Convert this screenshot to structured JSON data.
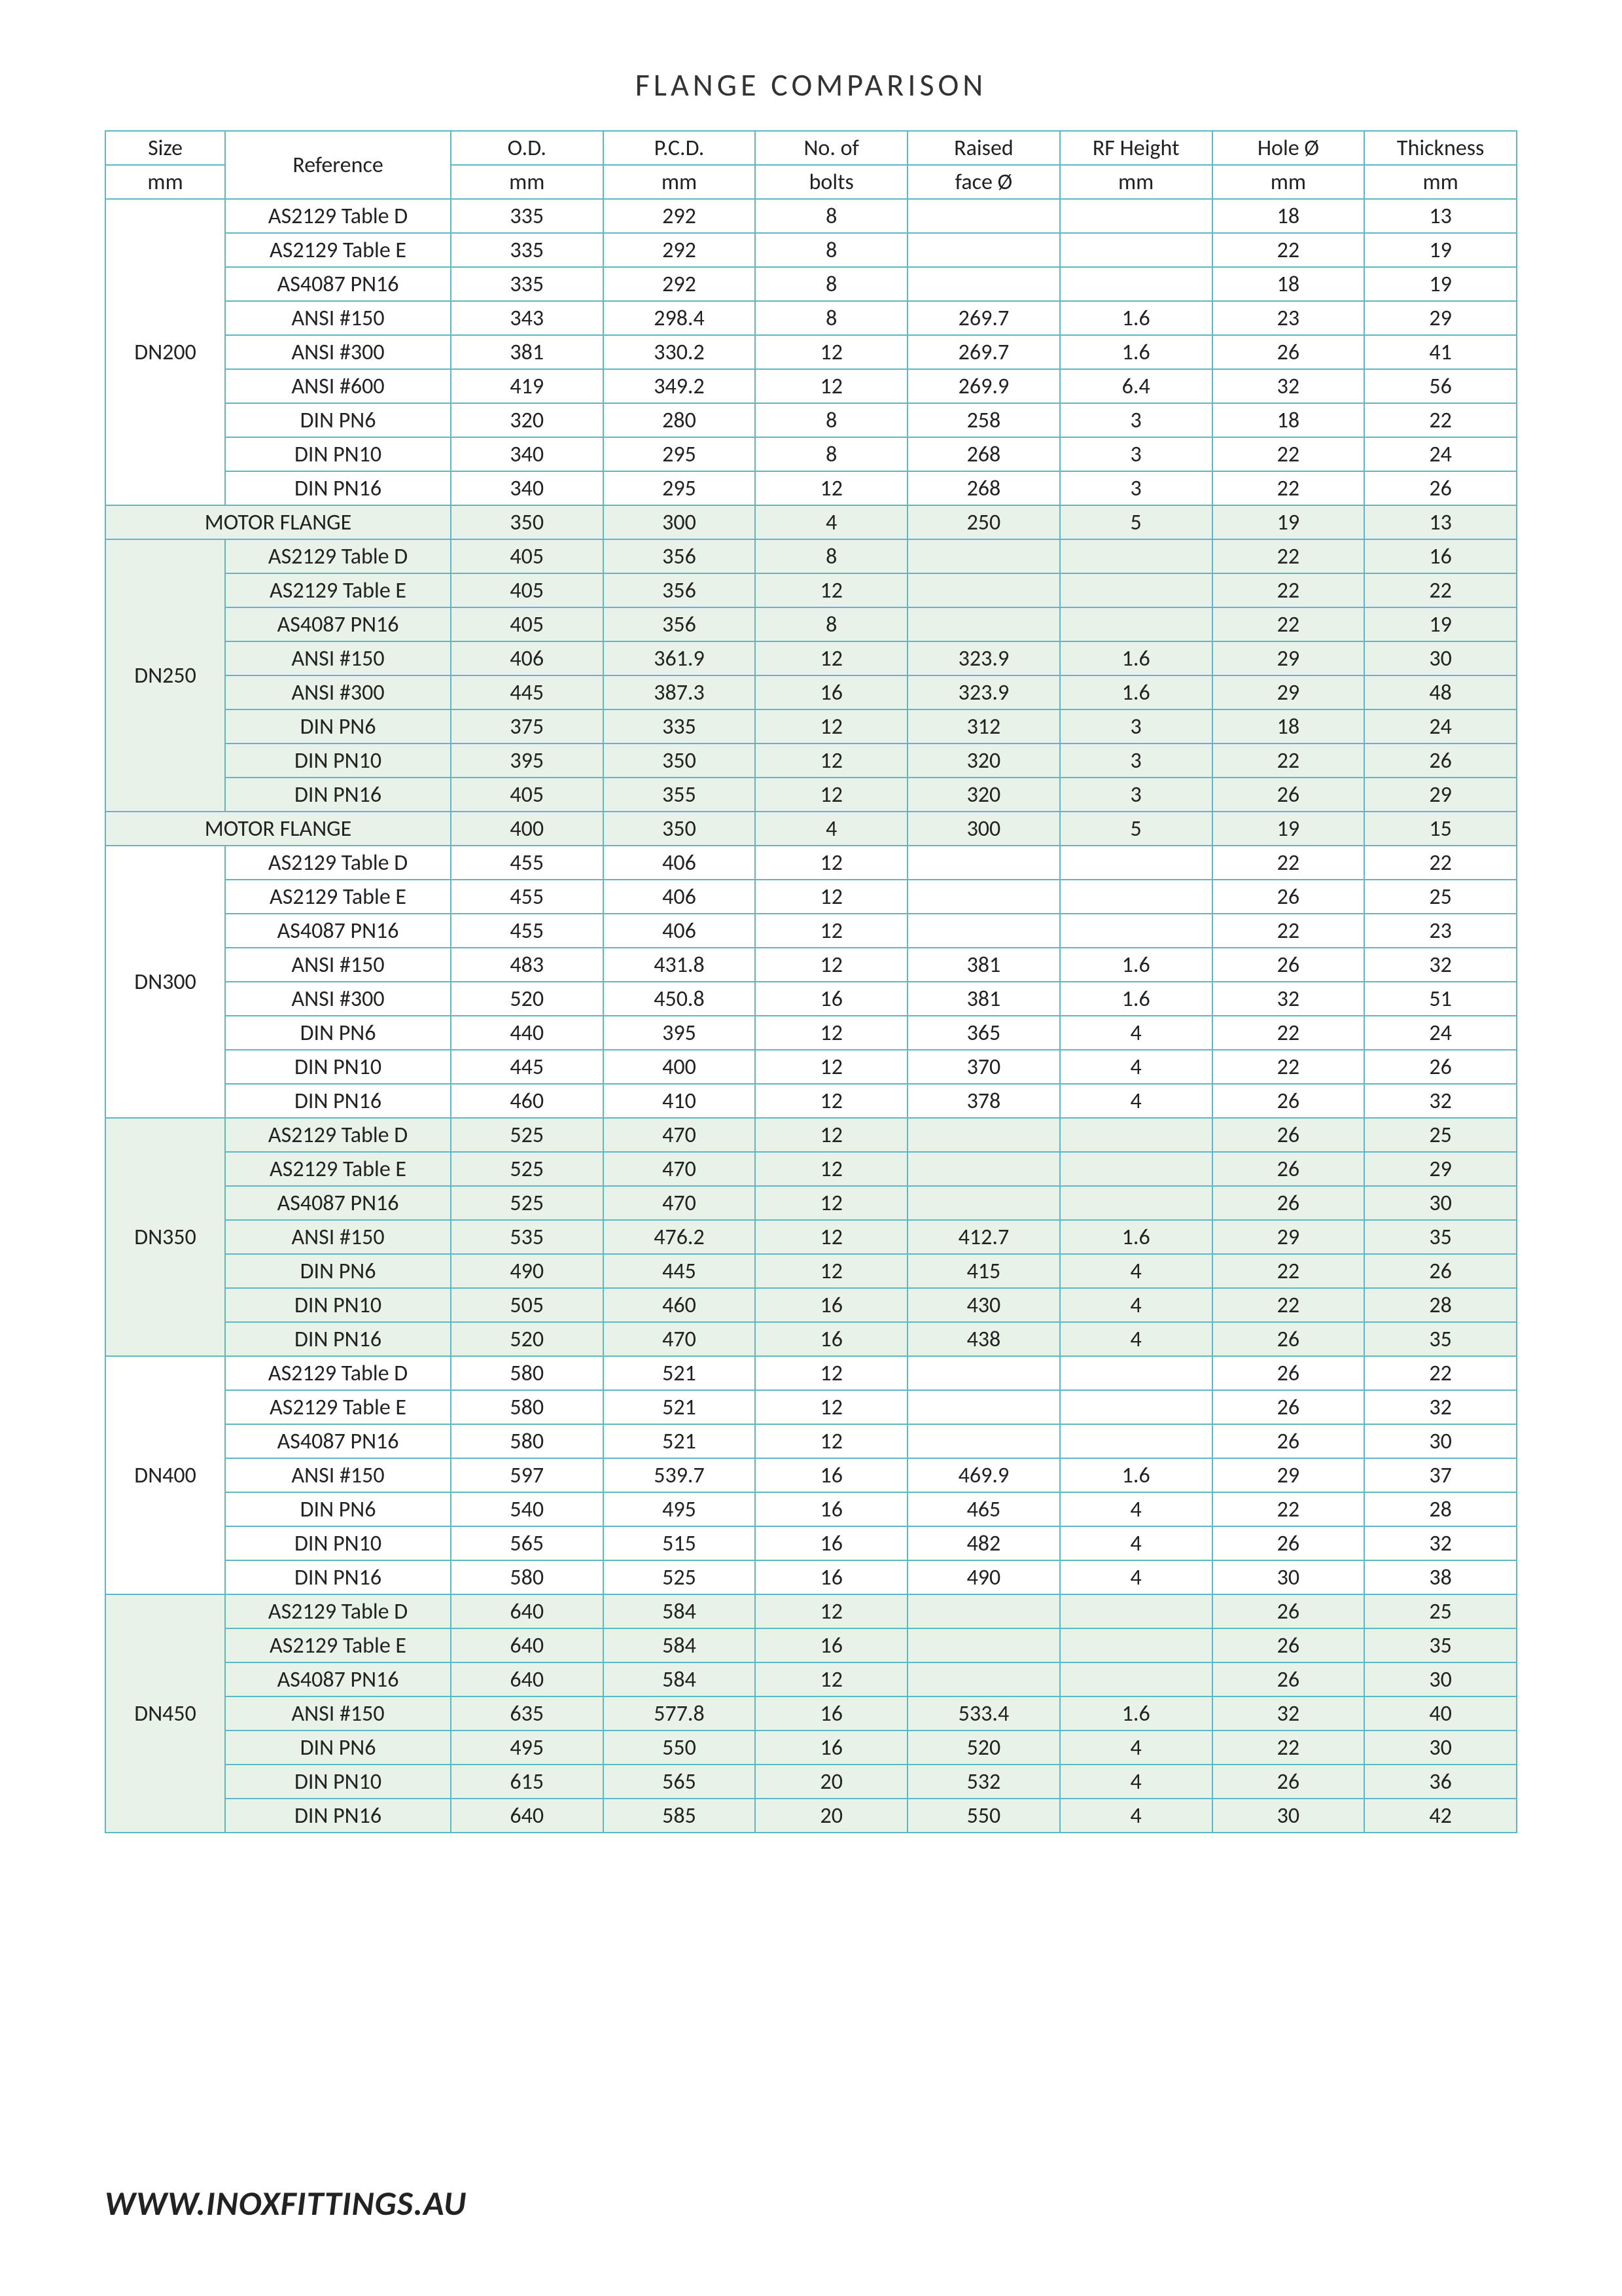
{
  "title": "FLANGE  COMPARISON",
  "footer": "WWW.INOXFITTINGS.AU",
  "columns": [
    {
      "line1": "Size",
      "line2": "mm"
    },
    {
      "line1": "Reference",
      "line2": ""
    },
    {
      "line1": "O.D.",
      "line2": "mm"
    },
    {
      "line1": "P.C.D.",
      "line2": "mm"
    },
    {
      "line1": "No. of",
      "line2": "bolts"
    },
    {
      "line1": "Raised",
      "line2": "face Ø"
    },
    {
      "line1": "RF Height",
      "line2": "mm"
    },
    {
      "line1": "Hole Ø",
      "line2": "mm"
    },
    {
      "line1": "Thickness",
      "line2": "mm"
    }
  ],
  "groups": [
    {
      "size": "DN200",
      "shaded": false,
      "rows": [
        {
          "ref": "AS2129 Table D",
          "od": "335",
          "pcd": "292",
          "bolts": "8",
          "rf": "",
          "rfh": "",
          "hole": "18",
          "thk": "13"
        },
        {
          "ref": "AS2129 Table E",
          "od": "335",
          "pcd": "292",
          "bolts": "8",
          "rf": "",
          "rfh": "",
          "hole": "22",
          "thk": "19"
        },
        {
          "ref": "AS4087 PN16",
          "od": "335",
          "pcd": "292",
          "bolts": "8",
          "rf": "",
          "rfh": "",
          "hole": "18",
          "thk": "19"
        },
        {
          "ref": "ANSI #150",
          "od": "343",
          "pcd": "298.4",
          "bolts": "8",
          "rf": "269.7",
          "rfh": "1.6",
          "hole": "23",
          "thk": "29"
        },
        {
          "ref": "ANSI #300",
          "od": "381",
          "pcd": "330.2",
          "bolts": "12",
          "rf": "269.7",
          "rfh": "1.6",
          "hole": "26",
          "thk": "41"
        },
        {
          "ref": "ANSI #600",
          "od": "419",
          "pcd": "349.2",
          "bolts": "12",
          "rf": "269.9",
          "rfh": "6.4",
          "hole": "32",
          "thk": "56"
        },
        {
          "ref": "DIN PN6",
          "od": "320",
          "pcd": "280",
          "bolts": "8",
          "rf": "258",
          "rfh": "3",
          "hole": "18",
          "thk": "22"
        },
        {
          "ref": "DIN PN10",
          "od": "340",
          "pcd": "295",
          "bolts": "8",
          "rf": "268",
          "rfh": "3",
          "hole": "22",
          "thk": "24"
        },
        {
          "ref": "DIN PN16",
          "od": "340",
          "pcd": "295",
          "bolts": "12",
          "rf": "268",
          "rfh": "3",
          "hole": "22",
          "thk": "26"
        }
      ],
      "motor": {
        "label": "MOTOR  FLANGE",
        "od": "350",
        "pcd": "300",
        "bolts": "4",
        "rf": "250",
        "rfh": "5",
        "hole": "19",
        "thk": "13"
      }
    },
    {
      "size": "DN250",
      "shaded": true,
      "rows": [
        {
          "ref": "AS2129 Table D",
          "od": "405",
          "pcd": "356",
          "bolts": "8",
          "rf": "",
          "rfh": "",
          "hole": "22",
          "thk": "16"
        },
        {
          "ref": "AS2129 Table E",
          "od": "405",
          "pcd": "356",
          "bolts": "12",
          "rf": "",
          "rfh": "",
          "hole": "22",
          "thk": "22"
        },
        {
          "ref": "AS4087 PN16",
          "od": "405",
          "pcd": "356",
          "bolts": "8",
          "rf": "",
          "rfh": "",
          "hole": "22",
          "thk": "19"
        },
        {
          "ref": "ANSI #150",
          "od": "406",
          "pcd": "361.9",
          "bolts": "12",
          "rf": "323.9",
          "rfh": "1.6",
          "hole": "29",
          "thk": "30"
        },
        {
          "ref": "ANSI #300",
          "od": "445",
          "pcd": "387.3",
          "bolts": "16",
          "rf": "323.9",
          "rfh": "1.6",
          "hole": "29",
          "thk": "48"
        },
        {
          "ref": "DIN PN6",
          "od": "375",
          "pcd": "335",
          "bolts": "12",
          "rf": "312",
          "rfh": "3",
          "hole": "18",
          "thk": "24"
        },
        {
          "ref": "DIN PN10",
          "od": "395",
          "pcd": "350",
          "bolts": "12",
          "rf": "320",
          "rfh": "3",
          "hole": "22",
          "thk": "26"
        },
        {
          "ref": "DIN PN16",
          "od": "405",
          "pcd": "355",
          "bolts": "12",
          "rf": "320",
          "rfh": "3",
          "hole": "26",
          "thk": "29"
        }
      ],
      "motor": {
        "label": "MOTOR  FLANGE",
        "od": "400",
        "pcd": "350",
        "bolts": "4",
        "rf": "300",
        "rfh": "5",
        "hole": "19",
        "thk": "15"
      }
    },
    {
      "size": "DN300",
      "shaded": false,
      "rows": [
        {
          "ref": "AS2129 Table D",
          "od": "455",
          "pcd": "406",
          "bolts": "12",
          "rf": "",
          "rfh": "",
          "hole": "22",
          "thk": "22"
        },
        {
          "ref": "AS2129 Table E",
          "od": "455",
          "pcd": "406",
          "bolts": "12",
          "rf": "",
          "rfh": "",
          "hole": "26",
          "thk": "25"
        },
        {
          "ref": "AS4087 PN16",
          "od": "455",
          "pcd": "406",
          "bolts": "12",
          "rf": "",
          "rfh": "",
          "hole": "22",
          "thk": "23"
        },
        {
          "ref": "ANSI #150",
          "od": "483",
          "pcd": "431.8",
          "bolts": "12",
          "rf": "381",
          "rfh": "1.6",
          "hole": "26",
          "thk": "32"
        },
        {
          "ref": "ANSI #300",
          "od": "520",
          "pcd": "450.8",
          "bolts": "16",
          "rf": "381",
          "rfh": "1.6",
          "hole": "32",
          "thk": "51"
        },
        {
          "ref": "DIN PN6",
          "od": "440",
          "pcd": "395",
          "bolts": "12",
          "rf": "365",
          "rfh": "4",
          "hole": "22",
          "thk": "24"
        },
        {
          "ref": "DIN PN10",
          "od": "445",
          "pcd": "400",
          "bolts": "12",
          "rf": "370",
          "rfh": "4",
          "hole": "22",
          "thk": "26"
        },
        {
          "ref": "DIN PN16",
          "od": "460",
          "pcd": "410",
          "bolts": "12",
          "rf": "378",
          "rfh": "4",
          "hole": "26",
          "thk": "32"
        }
      ]
    },
    {
      "size": "DN350",
      "shaded": true,
      "rows": [
        {
          "ref": "AS2129 Table D",
          "od": "525",
          "pcd": "470",
          "bolts": "12",
          "rf": "",
          "rfh": "",
          "hole": "26",
          "thk": "25"
        },
        {
          "ref": "AS2129 Table E",
          "od": "525",
          "pcd": "470",
          "bolts": "12",
          "rf": "",
          "rfh": "",
          "hole": "26",
          "thk": "29"
        },
        {
          "ref": "AS4087 PN16",
          "od": "525",
          "pcd": "470",
          "bolts": "12",
          "rf": "",
          "rfh": "",
          "hole": "26",
          "thk": "30"
        },
        {
          "ref": "ANSI #150",
          "od": "535",
          "pcd": "476.2",
          "bolts": "12",
          "rf": "412.7",
          "rfh": "1.6",
          "hole": "29",
          "thk": "35"
        },
        {
          "ref": "DIN PN6",
          "od": "490",
          "pcd": "445",
          "bolts": "12",
          "rf": "415",
          "rfh": "4",
          "hole": "22",
          "thk": "26"
        },
        {
          "ref": "DIN PN10",
          "od": "505",
          "pcd": "460",
          "bolts": "16",
          "rf": "430",
          "rfh": "4",
          "hole": "22",
          "thk": "28"
        },
        {
          "ref": "DIN PN16",
          "od": "520",
          "pcd": "470",
          "bolts": "16",
          "rf": "438",
          "rfh": "4",
          "hole": "26",
          "thk": "35"
        }
      ]
    },
    {
      "size": "DN400",
      "shaded": false,
      "rows": [
        {
          "ref": "AS2129 Table D",
          "od": "580",
          "pcd": "521",
          "bolts": "12",
          "rf": "",
          "rfh": "",
          "hole": "26",
          "thk": "22"
        },
        {
          "ref": "AS2129 Table E",
          "od": "580",
          "pcd": "521",
          "bolts": "12",
          "rf": "",
          "rfh": "",
          "hole": "26",
          "thk": "32"
        },
        {
          "ref": "AS4087 PN16",
          "od": "580",
          "pcd": "521",
          "bolts": "12",
          "rf": "",
          "rfh": "",
          "hole": "26",
          "thk": "30"
        },
        {
          "ref": "ANSI #150",
          "od": "597",
          "pcd": "539.7",
          "bolts": "16",
          "rf": "469.9",
          "rfh": "1.6",
          "hole": "29",
          "thk": "37"
        },
        {
          "ref": "DIN PN6",
          "od": "540",
          "pcd": "495",
          "bolts": "16",
          "rf": "465",
          "rfh": "4",
          "hole": "22",
          "thk": "28"
        },
        {
          "ref": "DIN PN10",
          "od": "565",
          "pcd": "515",
          "bolts": "16",
          "rf": "482",
          "rfh": "4",
          "hole": "26",
          "thk": "32"
        },
        {
          "ref": "DIN PN16",
          "od": "580",
          "pcd": "525",
          "bolts": "16",
          "rf": "490",
          "rfh": "4",
          "hole": "30",
          "thk": "38"
        }
      ]
    },
    {
      "size": "DN450",
      "shaded": true,
      "rows": [
        {
          "ref": "AS2129 Table D",
          "od": "640",
          "pcd": "584",
          "bolts": "12",
          "rf": "",
          "rfh": "",
          "hole": "26",
          "thk": "25"
        },
        {
          "ref": "AS2129 Table E",
          "od": "640",
          "pcd": "584",
          "bolts": "16",
          "rf": "",
          "rfh": "",
          "hole": "26",
          "thk": "35"
        },
        {
          "ref": "AS4087 PN16",
          "od": "640",
          "pcd": "584",
          "bolts": "12",
          "rf": "",
          "rfh": "",
          "hole": "26",
          "thk": "30"
        },
        {
          "ref": "ANSI #150",
          "od": "635",
          "pcd": "577.8",
          "bolts": "16",
          "rf": "533.4",
          "rfh": "1.6",
          "hole": "32",
          "thk": "40"
        },
        {
          "ref": "DIN PN6",
          "od": "495",
          "pcd": "550",
          "bolts": "16",
          "rf": "520",
          "rfh": "4",
          "hole": "22",
          "thk": "30"
        },
        {
          "ref": "DIN PN10",
          "od": "615",
          "pcd": "565",
          "bolts": "20",
          "rf": "532",
          "rfh": "4",
          "hole": "26",
          "thk": "36"
        },
        {
          "ref": "DIN PN16",
          "od": "640",
          "pcd": "585",
          "bolts": "20",
          "rf": "550",
          "rfh": "4",
          "hole": "30",
          "thk": "42"
        }
      ]
    }
  ]
}
